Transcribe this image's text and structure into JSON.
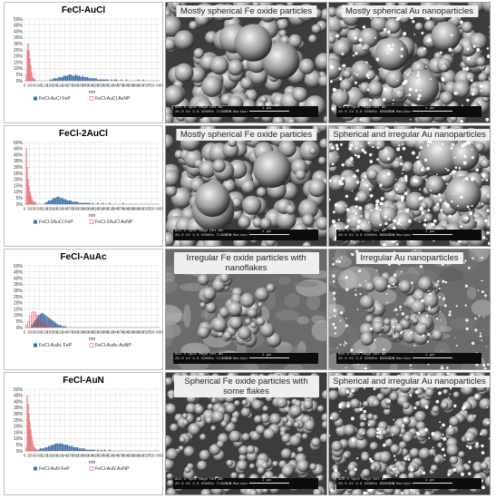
{
  "colors": {
    "fep": "#3a6ea5",
    "aunp": "#e06060",
    "grid": "#d9d9d9"
  },
  "rows": [
    {
      "title": "FeCl-AuCl",
      "legend_fep": "FeCl-AuCl FeP",
      "legend_aunp": "FeCl-AuCl AuNP",
      "xlabel": "nm",
      "label_fe": "Mostly spherical Fe oxide particles",
      "label_au": "Mostly spherical Au nanoparticles",
      "databar_fe": {
        "acc": "Acc.V  Spot Magn   Det  WD",
        "vals": "20.0 kV 3.0  50000x  TLD  6.5",
        "lab": "UCEM Maribor",
        "scale": "1 μm"
      },
      "databar_au": {
        "acc": "Acc.V  Spot Magn   Det  WD",
        "vals": "20.0 kV 3.0  50000x  BSE  6.5",
        "lab": "UCEM Maribor",
        "scale": "1 μm"
      }
    },
    {
      "title": "FeCl-2AuCl",
      "legend_fep": "FeCl-2AuCl FeP",
      "legend_aunp": "FeCl-2AuCl AuNP",
      "xlabel": "nm",
      "label_fe": "Mostly spherical Fe oxide particles",
      "label_au": "Spherical and irregular Au nanoparticles",
      "databar_fe": {
        "acc": "Acc.V  Spot Magn   Det  WD",
        "vals": "20.0 kV 3.0  50000x  TLD  6.4",
        "lab": "UCEM Maribor",
        "scale": "1 μm"
      },
      "databar_au": {
        "acc": "Acc.V  Spot Magn   Det  WD",
        "vals": "20.0 kV 3.0  50000x  BSE  6.4",
        "lab": "UCEM Maribor",
        "scale": "1 μm"
      }
    },
    {
      "title": "FeCl-AuAc",
      "legend_fep": "FeCl-AuAc FeP",
      "legend_aunp": "FeCl-AuAc AuNP",
      "xlabel": "nm",
      "label_fe": "Irregular Fe oxide particles with nanoflakes",
      "label_au": "Irregular Au nanoparticles",
      "databar_fe": {
        "acc": "Acc.V  Spot Magn   Det  WD",
        "vals": "20.0 kV 3.0  50000x  TLD  6.3",
        "lab": "UCEM Maribor",
        "scale": "1 μm"
      },
      "databar_au": {
        "acc": "Acc.V  Spot Magn   Det  WD",
        "vals": "20.0 kV 3.0  50000x  BSE  6.3",
        "lab": "UCEM Maribor",
        "scale": "1 μm"
      }
    },
    {
      "title": "FeCl-AuN",
      "legend_fep": "FeCl-AuN FeP",
      "legend_aunp": "FeCl-AuN AuNP",
      "xlabel": "nm",
      "label_fe": "Spherical Fe oxide particles with some flakes",
      "label_au": "Spherical and irregular Au nanoparticles",
      "databar_fe": {
        "acc": "Acc.V  Spot Magn   Det  WD",
        "vals": "20.0 kV 3.0  50000x  TLD  5.8",
        "lab": "UCEM Maribor",
        "scale": "1 μm"
      },
      "databar_au": {
        "acc": "Acc.V  Spot Magn   Det  WD",
        "vals": "20.0 kV 3.0  50000x  BSE  5.8",
        "lab": "UCEM Maribor",
        "scale": "1 μm"
      }
    }
  ],
  "chart_data": [
    {
      "type": "bar",
      "title": "FeCl-AuCl",
      "xlabel": "nm",
      "ylabel": "",
      "xlim": [
        0,
        800
      ],
      "ylim": [
        0,
        50
      ],
      "x_ticks": [
        "0",
        "30",
        "60",
        "90",
        "120",
        "150",
        "180",
        "210",
        "240",
        "270",
        "300",
        "330",
        "360",
        "390",
        "420",
        "450",
        "480",
        "510",
        "540",
        "570",
        "600",
        "630",
        "660",
        "690",
        "720",
        "750",
        "780",
        "800"
      ],
      "y_ticks": [
        "0%",
        "5%",
        "10%",
        "15%",
        "20%",
        "25%",
        "30%",
        "35%",
        "40%",
        "45%",
        "50%"
      ],
      "series": [
        {
          "name": "FeCl-AuCl FeP",
          "bin_start": 150,
          "bin_width": 10,
          "values": [
            1,
            1,
            2,
            2,
            2,
            3,
            3,
            3,
            4,
            4,
            4,
            5,
            5,
            4,
            4,
            5,
            4,
            4,
            3,
            4,
            3,
            3,
            3,
            2,
            2,
            2,
            2,
            2,
            1,
            1,
            1,
            1,
            1,
            1,
            1,
            0,
            1,
            0,
            1,
            1,
            0,
            0,
            1,
            0,
            0,
            1,
            0,
            0,
            0,
            0,
            0,
            0,
            1,
            0,
            0,
            1
          ]
        },
        {
          "name": "FeCl-AuCl AuNP",
          "bin_start": 10,
          "bin_width": 5,
          "values": [
            5,
            25,
            30,
            24,
            18,
            12,
            7,
            3,
            2,
            1,
            1
          ]
        }
      ]
    },
    {
      "type": "bar",
      "title": "FeCl-2AuCl",
      "xlabel": "nm",
      "ylabel": "",
      "xlim": [
        0,
        800
      ],
      "ylim": [
        0,
        50
      ],
      "x_ticks": [
        "0",
        "30",
        "60",
        "90",
        "120",
        "150",
        "180",
        "210",
        "240",
        "270",
        "300",
        "330",
        "360",
        "390",
        "420",
        "450",
        "480",
        "510",
        "540",
        "570",
        "600",
        "630",
        "660",
        "690",
        "720",
        "750",
        "780",
        "800"
      ],
      "y_ticks": [
        "0%",
        "5%",
        "10%",
        "15%",
        "20%",
        "25%",
        "30%",
        "35%",
        "40%",
        "45%",
        "50%"
      ],
      "series": [
        {
          "name": "FeCl-2AuCl FeP",
          "bin_start": 120,
          "bin_width": 10,
          "values": [
            1,
            2,
            3,
            3,
            4,
            5,
            5,
            6,
            6,
            5,
            5,
            4,
            4,
            3,
            3,
            3,
            2,
            2,
            2,
            2,
            1,
            1,
            1,
            1,
            1,
            1,
            1,
            0,
            1,
            0,
            0,
            1,
            0,
            0,
            1,
            0,
            0,
            0,
            1,
            0,
            0,
            0,
            0,
            0,
            0,
            0,
            1
          ]
        },
        {
          "name": "FeCl-2AuCl AuNP",
          "bin_start": 10,
          "bin_width": 5,
          "values": [
            45,
            30,
            20,
            14,
            10,
            7,
            5,
            3,
            2,
            2,
            1,
            1
          ]
        }
      ]
    },
    {
      "type": "bar",
      "title": "FeCl-AuAc",
      "xlabel": "nm",
      "ylabel": "",
      "xlim": [
        0,
        800
      ],
      "ylim": [
        0,
        50
      ],
      "x_ticks": [
        "0",
        "30",
        "60",
        "90",
        "120",
        "150",
        "180",
        "210",
        "240",
        "270",
        "300",
        "330",
        "360",
        "390",
        "420",
        "450",
        "480",
        "510",
        "540",
        "570",
        "600",
        "630",
        "660",
        "690",
        "720",
        "750",
        "780",
        "800"
      ],
      "y_ticks": [
        "0%",
        "5%",
        "10%",
        "15%",
        "20%",
        "25%",
        "30%",
        "35%",
        "40%",
        "45%",
        "50%"
      ],
      "series": [
        {
          "name": "FeCl-AuAc FeP",
          "bin_start": 40,
          "bin_width": 10,
          "values": [
            2,
            4,
            6,
            8,
            10,
            11,
            12,
            11,
            10,
            9,
            8,
            7,
            6,
            5,
            4,
            3,
            2,
            2,
            1,
            1,
            1
          ]
        },
        {
          "name": "FeCl-AuAc AuNP",
          "bin_start": 10,
          "bin_width": 10,
          "values": [
            2,
            5,
            9,
            12,
            13,
            12,
            10,
            8,
            6,
            5,
            4,
            3,
            2,
            2,
            1,
            1
          ]
        }
      ]
    },
    {
      "type": "bar",
      "title": "FeCl-AuN",
      "xlabel": "nm",
      "ylabel": "",
      "xlim": [
        0,
        800
      ],
      "ylim": [
        0,
        50
      ],
      "x_ticks": [
        "0",
        "30",
        "60",
        "90",
        "120",
        "150",
        "180",
        "210",
        "240",
        "270",
        "300",
        "330",
        "360",
        "390",
        "420",
        "450",
        "480",
        "510",
        "540",
        "570",
        "600",
        "630",
        "660",
        "690",
        "720",
        "750",
        "780",
        "800"
      ],
      "y_ticks": [
        "0%",
        "5%",
        "10%",
        "15%",
        "20%",
        "25%",
        "30%",
        "35%",
        "40%",
        "45%",
        "50%"
      ],
      "series": [
        {
          "name": "FeCl-AuN FeP",
          "bin_start": 70,
          "bin_width": 10,
          "values": [
            1,
            1,
            2,
            2,
            2,
            3,
            3,
            4,
            4,
            5,
            5,
            6,
            6,
            6,
            6,
            6,
            5,
            5,
            5,
            4,
            4,
            4,
            3,
            3,
            3,
            2,
            2,
            2,
            2,
            1,
            1,
            1,
            1,
            1,
            1,
            0,
            1,
            0,
            1,
            0,
            1,
            0,
            0,
            1
          ]
        },
        {
          "name": "FeCl-AuN AuNP",
          "bin_start": 10,
          "bin_width": 5,
          "values": [
            3,
            45,
            38,
            30,
            23,
            17,
            12,
            8,
            5,
            3,
            2,
            1,
            1
          ]
        }
      ]
    }
  ]
}
